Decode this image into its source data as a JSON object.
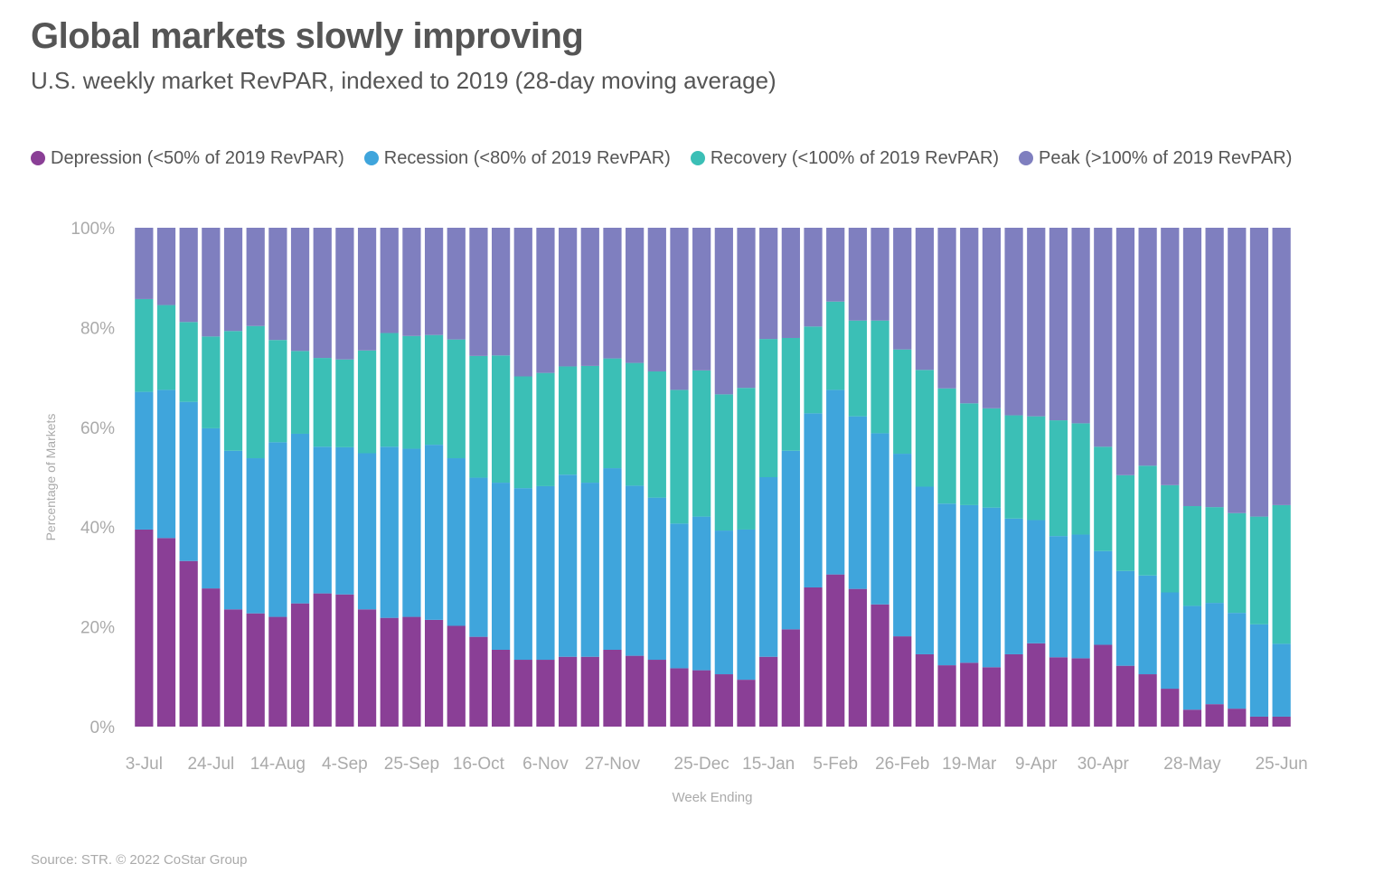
{
  "title": "Global markets slowly improving",
  "subtitle": "U.S. weekly market RevPAR, indexed to 2019 (28-day moving average)",
  "source": "Source: STR. © 2022 CoStar Group",
  "colors": {
    "depression": "#8a3f96",
    "recession": "#3fa5dc",
    "recovery": "#3bbfb6",
    "peak": "#7f7fbf",
    "axis_text": "#aaaaaa"
  },
  "legend": [
    {
      "label": "Depression (<50% of 2019 RevPAR)",
      "color": "#8a3f96"
    },
    {
      "label": "Recession (<80% of 2019 RevPAR)",
      "color": "#3fa5dc"
    },
    {
      "label": "Recovery (<100% of 2019 RevPAR)",
      "color": "#3bbfb6"
    },
    {
      "label": "Peak (>100% of 2019 RevPAR)",
      "color": "#7f7fbf"
    }
  ],
  "chart_data": {
    "type": "bar",
    "stacked": true,
    "xlabel": "Week Ending",
    "ylabel": "Percentage of Markets",
    "ylim": [
      0,
      100
    ],
    "y_ticks": [
      "0%",
      "20%",
      "40%",
      "60%",
      "80%",
      "100%"
    ],
    "x_tick_labels": [
      {
        "label": "3-Jul",
        "index": 0
      },
      {
        "label": "24-Jul",
        "index": 3
      },
      {
        "label": "14-Aug",
        "index": 6
      },
      {
        "label": "4-Sep",
        "index": 9
      },
      {
        "label": "25-Sep",
        "index": 12
      },
      {
        "label": "16-Oct",
        "index": 15
      },
      {
        "label": "6-Nov",
        "index": 18
      },
      {
        "label": "27-Nov",
        "index": 21
      },
      {
        "label": "25-Dec",
        "index": 25
      },
      {
        "label": "15-Jan",
        "index": 28
      },
      {
        "label": "5-Feb",
        "index": 31
      },
      {
        "label": "26-Feb",
        "index": 34
      },
      {
        "label": "19-Mar",
        "index": 37
      },
      {
        "label": "9-Apr",
        "index": 40
      },
      {
        "label": "30-Apr",
        "index": 43
      },
      {
        "label": "28-May",
        "index": 47
      },
      {
        "label": "25-Jun",
        "index": 51
      }
    ],
    "series": [
      {
        "name": "Depression (<50% of 2019 RevPAR)",
        "values": [
          39.5,
          37.8,
          33.2,
          27.7,
          23.5,
          22.7,
          22.0,
          24.7,
          26.7,
          26.5,
          23.5,
          21.8,
          22.0,
          21.4,
          20.2,
          18.0,
          15.4,
          13.4,
          13.4,
          14.0,
          14.0,
          15.4,
          14.2,
          13.4,
          11.7,
          11.3,
          10.5,
          9.4,
          14.0,
          19.5,
          27.9,
          30.5,
          27.6,
          24.5,
          18.1,
          14.5,
          12.3,
          12.8,
          11.9,
          14.5,
          16.7,
          13.9,
          13.7,
          16.4,
          12.2,
          10.5,
          7.6,
          3.4,
          4.5,
          3.6,
          2.0,
          2.0
        ]
      },
      {
        "name": "Recession (<80% of 2019 RevPAR)",
        "values": [
          27.6,
          29.7,
          31.9,
          32.1,
          31.8,
          31.1,
          35.0,
          34.0,
          29.4,
          29.5,
          31.3,
          34.3,
          33.7,
          35.1,
          33.6,
          31.9,
          33.5,
          34.4,
          34.8,
          36.5,
          34.9,
          36.4,
          34.1,
          32.5,
          29.0,
          30.8,
          28.8,
          30.1,
          36.0,
          35.8,
          34.9,
          37.0,
          34.6,
          34.3,
          36.6,
          33.6,
          32.4,
          31.6,
          32.0,
          27.2,
          24.7,
          24.3,
          24.8,
          18.8,
          19.0,
          19.8,
          19.3,
          20.8,
          20.3,
          19.2,
          18.5,
          14.6
        ]
      },
      {
        "name": "Recovery (<100% of 2019 RevPAR)",
        "values": [
          18.6,
          17.0,
          16.0,
          18.4,
          24.0,
          26.5,
          20.5,
          16.6,
          17.8,
          17.6,
          20.6,
          22.8,
          22.6,
          22.0,
          23.8,
          24.4,
          25.5,
          22.4,
          22.7,
          21.7,
          23.4,
          22.0,
          24.6,
          25.3,
          26.8,
          29.3,
          27.3,
          28.4,
          27.7,
          22.6,
          17.4,
          17.7,
          19.2,
          22.6,
          20.9,
          23.4,
          23.1,
          20.4,
          19.9,
          20.7,
          20.8,
          23.2,
          22.3,
          20.9,
          19.2,
          22.0,
          21.5,
          20.0,
          19.2,
          20.0,
          21.6,
          27.8
        ]
      },
      {
        "name": "Peak (>100% of 2019 RevPAR)",
        "values": [
          14.3,
          15.5,
          18.9,
          21.8,
          20.7,
          19.7,
          22.5,
          24.7,
          26.1,
          26.4,
          24.6,
          21.1,
          21.7,
          21.5,
          22.4,
          25.7,
          25.6,
          29.8,
          29.1,
          27.8,
          27.7,
          26.2,
          27.1,
          28.8,
          32.5,
          28.6,
          33.4,
          32.1,
          22.3,
          22.1,
          19.8,
          14.8,
          18.6,
          18.6,
          24.4,
          28.5,
          32.2,
          35.2,
          36.2,
          37.6,
          37.8,
          38.6,
          39.2,
          43.9,
          49.6,
          47.7,
          51.6,
          55.8,
          56.0,
          57.2,
          57.9,
          55.6
        ]
      }
    ]
  }
}
